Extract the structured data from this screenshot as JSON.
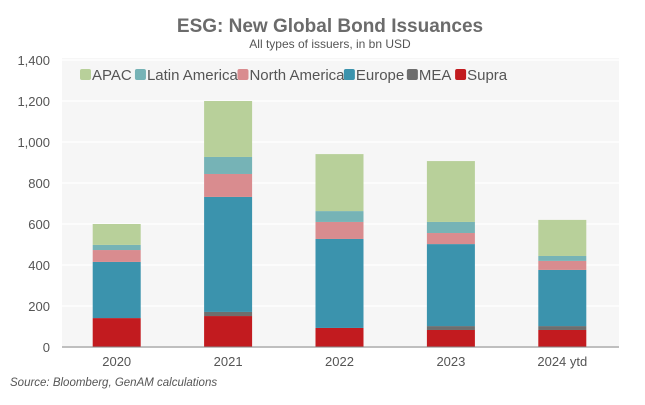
{
  "chart_data": {
    "type": "bar",
    "stacked": true,
    "title": "ESG: New Global Bond Issuances",
    "subtitle": "All types of issuers, in bn USD",
    "xlabel": "",
    "ylabel": "",
    "categories": [
      "2020",
      "2021",
      "2022",
      "2023",
      "2024 ytd"
    ],
    "ylim": [
      0,
      1400
    ],
    "yticks": [
      0,
      200,
      400,
      600,
      800,
      1000,
      1200,
      1400
    ],
    "ytick_labels": [
      "0",
      "200",
      "400",
      "600",
      "800",
      "1,000",
      "1,200",
      "1,400"
    ],
    "grid": true,
    "legend_position": "top",
    "series": [
      {
        "name": "Supra",
        "color": "#c21b1f",
        "values": [
          141,
          151,
          93,
          83,
          83
        ]
      },
      {
        "name": "MEA",
        "color": "#6e6e6e",
        "values": [
          0,
          20,
          0,
          19,
          19
        ]
      },
      {
        "name": "Europe",
        "color": "#3b93ad",
        "values": [
          274,
          561,
          434,
          400,
          274
        ]
      },
      {
        "name": "North America",
        "color": "#d98c8f",
        "values": [
          58,
          112,
          83,
          54,
          44
        ]
      },
      {
        "name": "Latin America",
        "color": "#76b3b6",
        "values": [
          25,
          83,
          53,
          54,
          24
        ]
      },
      {
        "name": "APAC",
        "color": "#b8d09a",
        "values": [
          102,
          273,
          278,
          297,
          176
        ]
      }
    ],
    "legend_order": [
      "APAC",
      "Latin America",
      "North America",
      "Europe",
      "MEA",
      "Supra"
    ],
    "source": "Source: Bloomberg, GenAM calculations"
  }
}
